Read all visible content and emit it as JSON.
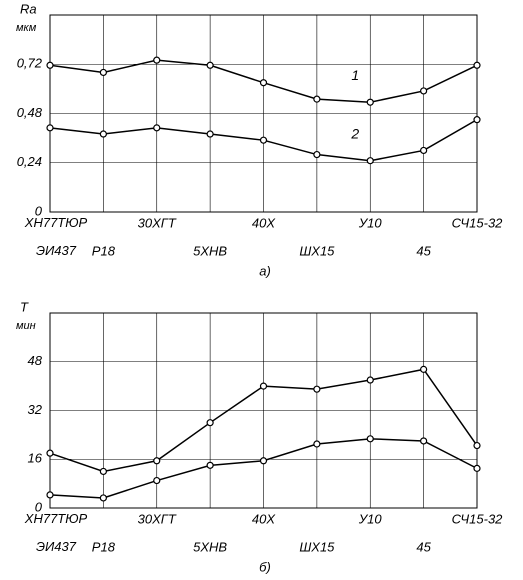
{
  "chart_data": [
    {
      "type": "line",
      "y_label": "Ra",
      "y_unit": "мкм",
      "caption": "а)",
      "categories": [
        "ХН77ТЮР ЭИ437",
        "Р18",
        "30ХГТ",
        "5ХНВ",
        "40Х",
        "ШХ15",
        "У10",
        "45",
        "СЧ15-32"
      ],
      "series": [
        {
          "name": "1",
          "color": "#000000",
          "values": [
            0.715,
            0.68,
            0.74,
            0.715,
            0.63,
            0.55,
            0.535,
            0.59,
            0.715
          ]
        },
        {
          "name": "2",
          "color": "#000000",
          "values": [
            0.41,
            0.38,
            0.41,
            0.38,
            0.35,
            0.28,
            0.25,
            0.3,
            0.45
          ]
        }
      ],
      "ylim": [
        0,
        0.96
      ],
      "yticks": [
        0,
        {
          "value": 0.24,
          "label": "0,24"
        },
        {
          "value": 0.48,
          "label": "0,48"
        },
        {
          "value": 0.72,
          "label": "0,72"
        }
      ],
      "grid": true
    },
    {
      "type": "line",
      "y_label": "T",
      "y_unit": "мин",
      "caption": "б)",
      "categories": [
        "ХН77ТЮР ЭИ437",
        "Р18",
        "30ХГТ",
        "5ХНВ",
        "40Х",
        "ШХ15",
        "У10",
        "45",
        "СЧ15-32"
      ],
      "series": [
        {
          "color": "#000000",
          "values": [
            18,
            12,
            15.5,
            28,
            40,
            39,
            42,
            45.5,
            20.5
          ]
        },
        {
          "color": "#000000",
          "values": [
            4.3,
            3.3,
            9,
            14,
            15.5,
            21,
            22.7,
            22,
            13
          ]
        }
      ],
      "ylim": [
        0,
        64
      ],
      "yticks": [
        0,
        16,
        32,
        48
      ],
      "grid": true
    }
  ]
}
